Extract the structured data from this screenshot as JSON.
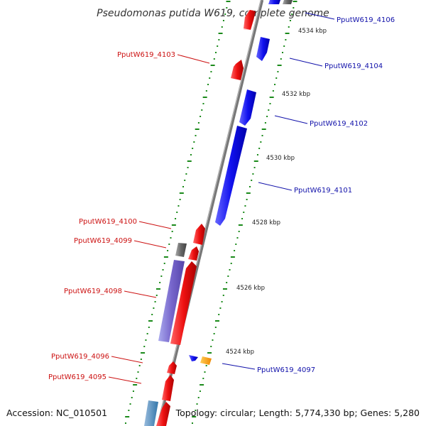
{
  "title": "Pseudomonas putida W619, complete genome",
  "footer": {
    "accession": "Accession: NC_010501",
    "summary": "Topology: circular; Length: 5,774,330 bp; Genes: 5,280"
  },
  "colors": {
    "forward": "#ee1111",
    "reverse": "#1111ee",
    "backbone": "#888888",
    "tick": "#1a8a1a",
    "label_forward": "#cc1111",
    "label_reverse": "#1111aa"
  },
  "kbp_labels": [
    "4534 kbp",
    "4532 kbp",
    "4530 kbp",
    "4528 kbp",
    "4526 kbp",
    "4524 kbp"
  ],
  "gene_labels": {
    "forward": [
      "PputW619_4103",
      "PputW619_4100",
      "PputW619_4099",
      "PputW619_4098",
      "PputW619_4096",
      "PputW619_4095"
    ],
    "reverse": [
      "PputW619_4106",
      "PputW619_4104",
      "PputW619_4102",
      "PputW619_4101",
      "PputW619_4097"
    ]
  }
}
